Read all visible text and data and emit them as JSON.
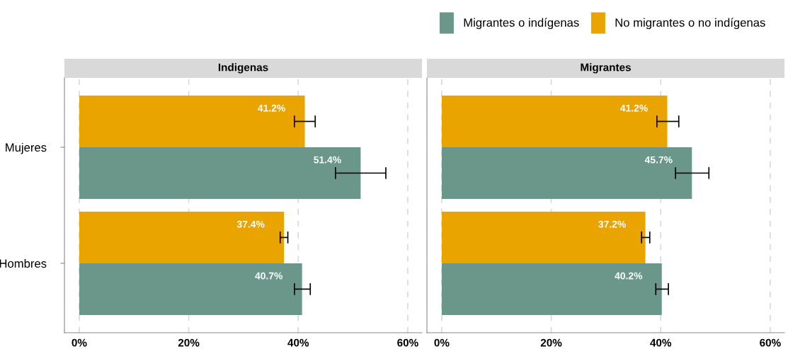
{
  "chart_data": [
    {
      "type": "bar",
      "title": "Indigenas",
      "orientation": "horizontal",
      "categories": [
        "Mujeres",
        "Hombres"
      ],
      "legend": "top right",
      "grid": "x",
      "line_style": "dashed",
      "xlim": [
        -2.7,
        62.6
      ],
      "xticks": [
        {
          "value": 0,
          "label": "0%"
        },
        {
          "value": 20,
          "label": "20%"
        },
        {
          "value": 40,
          "label": "40%"
        },
        {
          "value": 60,
          "label": "60%"
        }
      ],
      "series": [
        {
          "name": "Migrantes o indígenas",
          "color": "#6b978b",
          "values": [
            51.4,
            40.7
          ],
          "value_labels": [
            "51.4%",
            "40.7%"
          ],
          "errors": [
            [
              46.8,
              56.0
            ],
            [
              39.3,
              42.2
            ]
          ]
        },
        {
          "name": "No migrantes o no indígenas",
          "color": "#e9a400",
          "values": [
            41.2,
            37.4
          ],
          "value_labels": [
            "41.2%",
            "37.4%"
          ],
          "errors": [
            [
              39.3,
              43.1
            ],
            [
              36.7,
              38.1
            ]
          ]
        }
      ]
    },
    {
      "type": "bar",
      "title": "Migrantes",
      "orientation": "horizontal",
      "categories": [
        null,
        null
      ],
      "grid": "x",
      "line_style": "dashed",
      "tick_labels": "x",
      "xlim": [
        -2.7,
        62.6
      ],
      "xticks": [
        {
          "value": 0,
          "label": "0%"
        },
        {
          "value": 20,
          "label": "20%"
        },
        {
          "value": 40,
          "label": "40%"
        },
        {
          "value": 60,
          "label": "60%"
        }
      ],
      "series": [
        {
          "color": "#6b978b",
          "values": [
            45.7,
            40.2
          ],
          "value_labels": [
            "45.7%",
            "40.2%"
          ],
          "errors": [
            [
              42.7,
              48.8
            ],
            [
              39.1,
              41.4
            ]
          ]
        },
        {
          "color": "#e9a400",
          "values": [
            41.2,
            37.2
          ],
          "value_labels": [
            "41.2%",
            "37.2%"
          ],
          "errors": [
            [
              39.3,
              43.3
            ],
            [
              36.5,
              38.0
            ]
          ]
        }
      ]
    }
  ]
}
